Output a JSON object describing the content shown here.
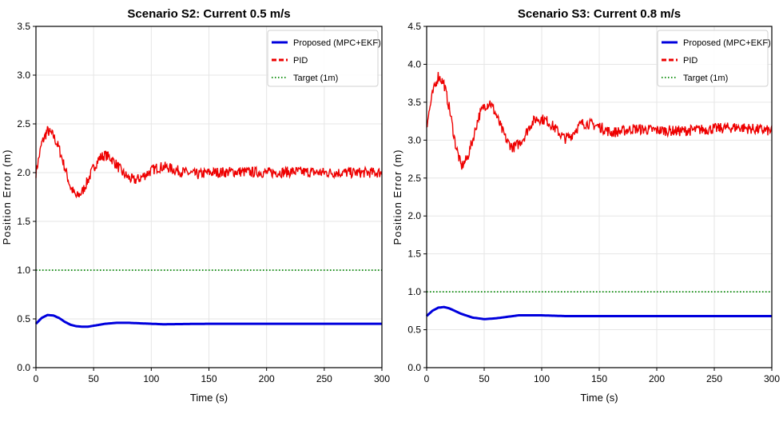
{
  "chart_data": [
    {
      "type": "line",
      "title": "Scenario S2: Current 0.5 m/s",
      "xlabel": "Time (s)",
      "ylabel": "Position Error (m)",
      "xlim": [
        0,
        300
      ],
      "ylim": [
        0,
        3.5
      ],
      "xticks": [
        "0",
        "50",
        "100",
        "150",
        "200",
        "250",
        "300"
      ],
      "yticks": [
        "0.0",
        "0.5",
        "1.0",
        "1.5",
        "2.0",
        "2.5",
        "3.0",
        "3.5"
      ],
      "grid": true,
      "legend_position": "top-right",
      "series": [
        {
          "name": "Proposed (MPC+EKF)",
          "color": "#0000dd",
          "style": "solid",
          "x": [
            0,
            5,
            10,
            15,
            20,
            25,
            30,
            35,
            40,
            45,
            50,
            60,
            70,
            80,
            90,
            100,
            110,
            150,
            200,
            250,
            300
          ],
          "y": [
            0.45,
            0.51,
            0.54,
            0.535,
            0.51,
            0.47,
            0.44,
            0.425,
            0.42,
            0.42,
            0.43,
            0.45,
            0.46,
            0.46,
            0.455,
            0.45,
            0.445,
            0.45,
            0.45,
            0.45,
            0.45
          ]
        },
        {
          "name": "PID",
          "color": "#ee0000",
          "style": "dashed",
          "x": [
            0,
            5,
            10,
            15,
            20,
            25,
            30,
            35,
            40,
            45,
            50,
            55,
            60,
            65,
            70,
            75,
            80,
            85,
            90,
            95,
            100,
            105,
            110,
            115,
            120,
            130,
            140,
            150,
            175,
            200,
            225,
            250,
            275,
            300
          ],
          "y": [
            2.0,
            2.3,
            2.43,
            2.38,
            2.25,
            2.05,
            1.85,
            1.75,
            1.8,
            1.92,
            2.05,
            2.15,
            2.18,
            2.15,
            2.08,
            2.0,
            1.95,
            1.92,
            1.94,
            1.98,
            2.02,
            2.05,
            2.06,
            2.05,
            2.03,
            2.0,
            1.98,
            2.0,
            2.01,
            2.0,
            2.01,
            2.0,
            2.0,
            2.0
          ]
        },
        {
          "name": "Target (1m)",
          "color": "#008800",
          "style": "dotted",
          "x": [
            0,
            300
          ],
          "y": [
            1.0,
            1.0
          ]
        }
      ]
    },
    {
      "type": "line",
      "title": "Scenario S3: Current 0.8 m/s",
      "xlabel": "Time (s)",
      "ylabel": "Position Error (m)",
      "xlim": [
        0,
        300
      ],
      "ylim": [
        0,
        4.5
      ],
      "xticks": [
        "0",
        "50",
        "100",
        "150",
        "200",
        "250",
        "300"
      ],
      "yticks": [
        "0.0",
        "0.5",
        "1.0",
        "1.5",
        "2.0",
        "2.5",
        "3.0",
        "3.5",
        "4.0",
        "4.5"
      ],
      "grid": true,
      "legend_position": "top-right",
      "series": [
        {
          "name": "Proposed (MPC+EKF)",
          "color": "#0000dd",
          "style": "solid",
          "x": [
            0,
            5,
            10,
            15,
            20,
            30,
            40,
            50,
            60,
            70,
            80,
            90,
            100,
            120,
            150,
            200,
            250,
            300
          ],
          "y": [
            0.68,
            0.75,
            0.79,
            0.8,
            0.78,
            0.71,
            0.66,
            0.64,
            0.65,
            0.67,
            0.69,
            0.69,
            0.69,
            0.68,
            0.68,
            0.68,
            0.68,
            0.68
          ]
        },
        {
          "name": "PID",
          "color": "#ee0000",
          "style": "dashed",
          "x": [
            0,
            5,
            10,
            15,
            20,
            25,
            30,
            35,
            40,
            45,
            50,
            55,
            60,
            65,
            70,
            75,
            80,
            85,
            90,
            95,
            100,
            105,
            110,
            115,
            120,
            125,
            130,
            135,
            140,
            150,
            160,
            170,
            180,
            200,
            220,
            250,
            270,
            300
          ],
          "y": [
            3.2,
            3.6,
            3.85,
            3.75,
            3.4,
            2.95,
            2.65,
            2.75,
            3.0,
            3.3,
            3.45,
            3.5,
            3.35,
            3.15,
            2.98,
            2.9,
            2.95,
            3.05,
            3.2,
            3.28,
            3.28,
            3.25,
            3.18,
            3.1,
            3.02,
            3.05,
            3.15,
            3.22,
            3.22,
            3.18,
            3.1,
            3.12,
            3.15,
            3.13,
            3.12,
            3.15,
            3.17,
            3.12
          ]
        },
        {
          "name": "Target (1m)",
          "color": "#008800",
          "style": "dotted",
          "x": [
            0,
            300
          ],
          "y": [
            1.0,
            1.0
          ]
        }
      ]
    }
  ]
}
